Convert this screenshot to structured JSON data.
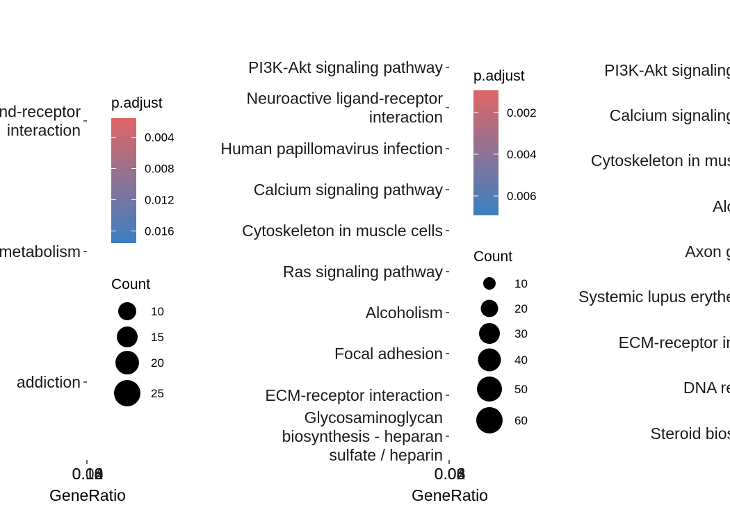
{
  "chart_data": [
    {
      "type": "scatter",
      "title": "",
      "xlabel": "GeneRatio",
      "ylabel": "",
      "x_ticks": [
        "0.08",
        "0.10",
        "0.12",
        "0.14",
        "0.16"
      ],
      "categories": [
        "Neuroactive ligand-receptor\ninteraction",
        "metabolism",
        "addiction"
      ],
      "color_legend": {
        "title": "p.adjust",
        "labels": [
          "0.004",
          "0.008",
          "0.012",
          "0.016"
        ],
        "low_color": "#e06666",
        "high_color": "#3a7fc1"
      },
      "size_legend": {
        "title": "Count",
        "labels": [
          "10",
          "15",
          "20",
          "25"
        ]
      },
      "grid": false
    },
    {
      "type": "scatter",
      "title": "",
      "xlabel": "GeneRatio",
      "ylabel": "",
      "x_ticks": [
        "0.02",
        "0.04",
        "0.06",
        "0.08"
      ],
      "categories": [
        "PI3K-Akt signaling pathway",
        "Neuroactive ligand-receptor\ninteraction",
        "Human papillomavirus infection",
        "Calcium signaling pathway",
        "Cytoskeleton in muscle cells",
        "Ras signaling pathway",
        "Alcoholism",
        "Focal adhesion",
        "ECM-receptor interaction",
        "Glycosaminoglycan\nbiosynthesis - heparan\nsulfate / heparin"
      ],
      "color_legend": {
        "title": "p.adjust",
        "labels": [
          "0.002",
          "0.004",
          "0.006"
        ],
        "low_color": "#e06666",
        "high_color": "#3a7fc1"
      },
      "size_legend": {
        "title": "Count",
        "labels": [
          "10",
          "20",
          "30",
          "40",
          "50",
          "60"
        ]
      },
      "grid": false
    },
    {
      "type": "scatter",
      "title": "",
      "xlabel": "",
      "ylabel": "",
      "categories": [
        "PI3K-Akt signaling",
        "Calcium signaling",
        "Cytoskeleton in mus",
        "Alc",
        "Axon g",
        "Systemic lupus erythe",
        "ECM-receptor in",
        "DNA re",
        "Steroid bios"
      ],
      "grid": false
    }
  ]
}
